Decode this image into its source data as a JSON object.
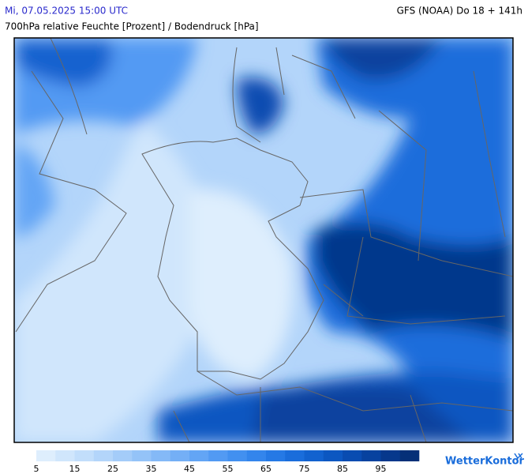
{
  "header": {
    "datetime": "Mi, 07.05.2025 15:00 UTC",
    "model": "GFS (NOAA) Do 18 + 141h",
    "subtitle": "700hPa relative Feuchte [Prozent] / Bodendruck [hPa]"
  },
  "legend": {
    "ticks": [
      5,
      15,
      25,
      35,
      45,
      55,
      65,
      75,
      85,
      95
    ],
    "colors": [
      "#deeefd",
      "#d0e6fc",
      "#c2defb",
      "#b3d5fa",
      "#a4ccf9",
      "#94c3f8",
      "#84b9f7",
      "#74aff6",
      "#63a5f5",
      "#529af3",
      "#4290f0",
      "#3385ec",
      "#2579e5",
      "#1a6ddb",
      "#1262cf",
      "#0c57c1",
      "#094cb1",
      "#07429f",
      "#06388c",
      "#053078"
    ]
  },
  "brand": "WetterKontor"
}
